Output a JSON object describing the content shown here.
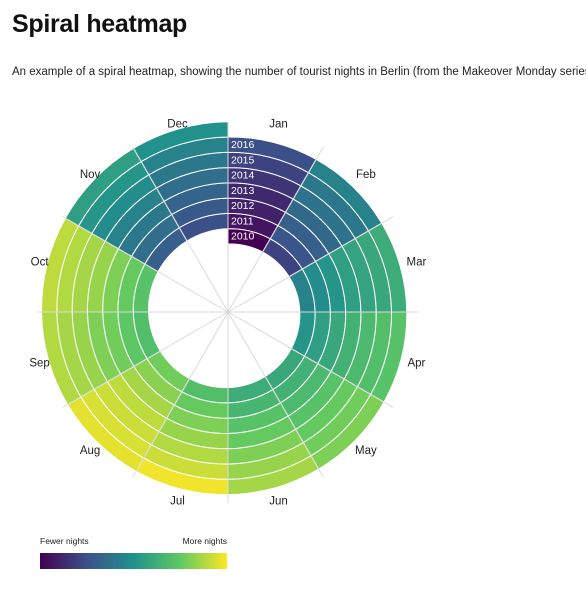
{
  "page": {
    "title": "Spiral heatmap",
    "description": "An example of a spiral heatmap, showing the number of tourist nights in Berlin (from the Makeover Monday series)."
  },
  "legend": {
    "low_label": "Fewer nights",
    "high_label": "More nights",
    "colors": [
      "#440154",
      "#3b528b",
      "#21918c",
      "#5ec962",
      "#fde725"
    ]
  },
  "chart_data": {
    "type": "heatmap",
    "layout": "radial spiral",
    "title": "",
    "months": [
      "Jan",
      "Feb",
      "Mar",
      "Apr",
      "May",
      "Jun",
      "Jul",
      "Aug",
      "Sep",
      "Oct",
      "Nov",
      "Dec"
    ],
    "years": [
      "2010",
      "2011",
      "2012",
      "2013",
      "2014",
      "2015",
      "2016"
    ],
    "values": [
      [
        0.0,
        0.2,
        0.44,
        0.52,
        0.6,
        0.62,
        0.7,
        0.78,
        0.7,
        0.72,
        0.3,
        0.24
      ],
      [
        0.06,
        0.26,
        0.48,
        0.56,
        0.64,
        0.66,
        0.76,
        0.82,
        0.74,
        0.76,
        0.36,
        0.28
      ],
      [
        0.1,
        0.3,
        0.52,
        0.6,
        0.68,
        0.72,
        0.8,
        0.86,
        0.78,
        0.8,
        0.4,
        0.32
      ],
      [
        0.12,
        0.34,
        0.56,
        0.64,
        0.72,
        0.76,
        0.84,
        0.9,
        0.8,
        0.84,
        0.44,
        0.36
      ],
      [
        0.16,
        0.38,
        0.58,
        0.68,
        0.76,
        0.8,
        0.88,
        0.92,
        0.84,
        0.86,
        0.48,
        0.4
      ],
      [
        0.2,
        0.4,
        0.6,
        0.7,
        0.78,
        0.84,
        0.92,
        0.94,
        0.86,
        0.88,
        0.52,
        0.44
      ],
      [
        0.24,
        0.44,
        0.62,
        0.72,
        0.8,
        0.86,
        0.98,
        0.96,
        0.88,
        0.9,
        0.56,
        0.5
      ]
    ],
    "color_scale": "viridis",
    "value_scale": "relative, 0 = fewer nights, 1 = more nights"
  }
}
